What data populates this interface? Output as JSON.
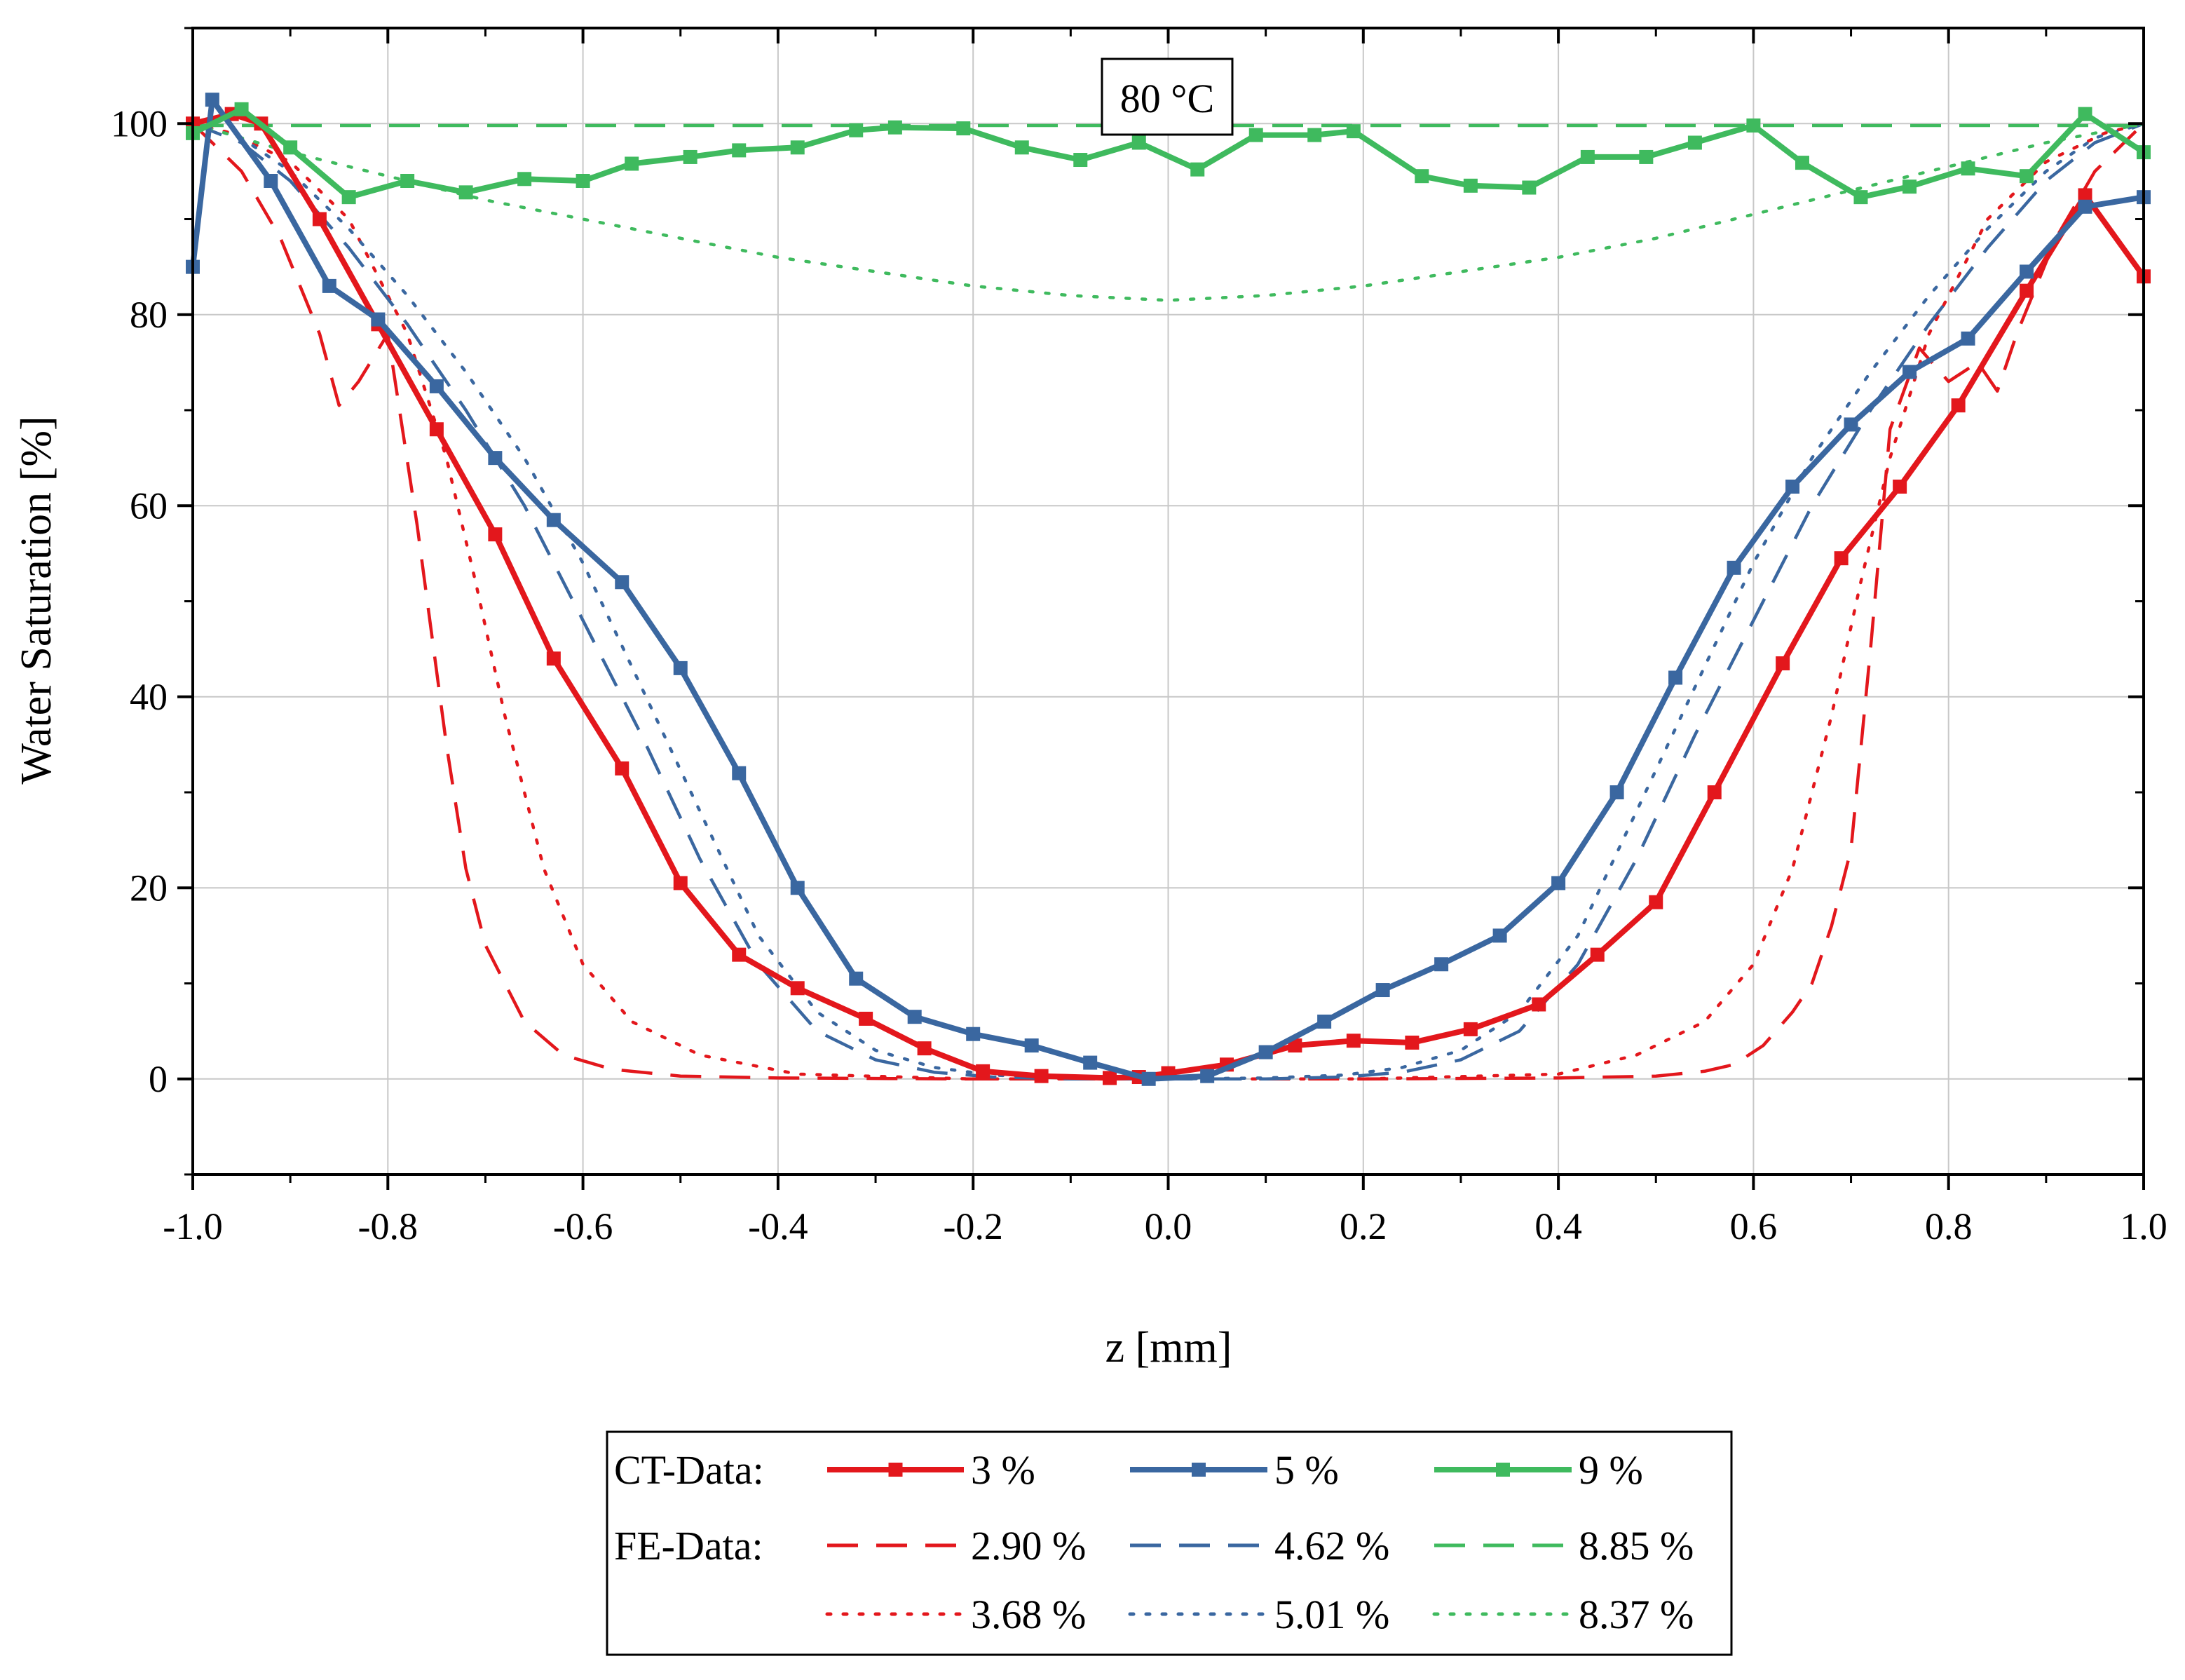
{
  "chart_data": {
    "type": "line",
    "annotation": "80 °C",
    "xlabel": "z [mm]",
    "ylabel": "Water Saturation [%]",
    "xlim": [
      -1.0,
      1.0
    ],
    "ylim": [
      -10,
      110
    ],
    "x_ticks": [
      -1.0,
      -0.8,
      -0.6,
      -0.4,
      -0.2,
      0.0,
      0.2,
      0.4,
      0.6,
      0.8,
      1.0
    ],
    "x_tick_labels": [
      "-1.0",
      "-0.8",
      "-0.6",
      "-0.4",
      "-0.2",
      "0.0",
      "0.2",
      "0.4",
      "0.6",
      "0.8",
      "1.0"
    ],
    "y_ticks": [
      0,
      20,
      40,
      60,
      80,
      100
    ],
    "y_tick_labels": [
      "0",
      "20",
      "40",
      "60",
      "80",
      "100"
    ],
    "grid": true,
    "colors": {
      "red": "#e3171c",
      "blue": "#3a67a0",
      "green": "#3fba5e"
    },
    "legend": {
      "ct_label": "CT-Data:",
      "fe_label": "FE-Data:",
      "entries": {
        "ct_3": "3 %",
        "ct_5": "5 %",
        "ct_9": "9 %",
        "fe_290": "2.90 %",
        "fe_462": "4.62 %",
        "fe_885": "8.85 %",
        "fe_368": "3.68 %",
        "fe_501": "5.01 %",
        "fe_837": "8.37 %"
      }
    },
    "series": [
      {
        "name": "CT 3 %",
        "group": "CT-Data",
        "color": "red",
        "style": "solid",
        "markers": true,
        "x": [
          -1.0,
          -0.96,
          -0.93,
          -0.87,
          -0.81,
          -0.75,
          -0.69,
          -0.63,
          -0.56,
          -0.5,
          -0.44,
          -0.38,
          -0.31,
          -0.25,
          -0.19,
          -0.13,
          -0.06,
          -0.03,
          0.0,
          0.06,
          0.13,
          0.19,
          0.25,
          0.31,
          0.38,
          0.44,
          0.5,
          0.56,
          0.63,
          0.69,
          0.75,
          0.81,
          0.88,
          0.94,
          1.0
        ],
        "y": [
          100,
          101,
          100,
          90,
          79,
          68,
          57,
          44,
          32.5,
          20.5,
          13,
          9.5,
          6.3,
          3.2,
          0.8,
          0.3,
          0.1,
          0.2,
          0.6,
          1.5,
          3.5,
          4,
          3.8,
          5.2,
          7.8,
          13,
          18.5,
          30,
          43.5,
          54.5,
          62,
          70.5,
          82.5,
          92.5,
          84
        ]
      },
      {
        "name": "CT 5 %",
        "group": "CT-Data",
        "color": "blue",
        "style": "solid",
        "markers": true,
        "x": [
          -1.0,
          -0.98,
          -0.92,
          -0.86,
          -0.81,
          -0.75,
          -0.69,
          -0.63,
          -0.56,
          -0.5,
          -0.44,
          -0.38,
          -0.32,
          -0.26,
          -0.2,
          -0.14,
          -0.08,
          -0.02,
          0.04,
          0.1,
          0.16,
          0.22,
          0.28,
          0.34,
          0.4,
          0.46,
          0.52,
          0.58,
          0.64,
          0.7,
          0.76,
          0.82,
          0.88,
          0.94,
          1.0
        ],
        "y": [
          85,
          102.5,
          94,
          83,
          79.5,
          72.5,
          65,
          58.5,
          52,
          43,
          32,
          20,
          10.5,
          6.5,
          4.7,
          3.5,
          1.7,
          0,
          0.3,
          2.8,
          6,
          9.3,
          12,
          15,
          20.5,
          30,
          42,
          53.5,
          62,
          68.5,
          74,
          77.5,
          84.5,
          91.3,
          92.3
        ]
      },
      {
        "name": "CT 9 %",
        "group": "CT-Data",
        "color": "green",
        "style": "solid",
        "markers": true,
        "x": [
          -1.0,
          -0.95,
          -0.9,
          -0.84,
          -0.78,
          -0.72,
          -0.66,
          -0.6,
          -0.55,
          -0.49,
          -0.44,
          -0.38,
          -0.32,
          -0.28,
          -0.21,
          -0.15,
          -0.09,
          -0.03,
          0.03,
          0.09,
          0.15,
          0.19,
          0.26,
          0.31,
          0.37,
          0.43,
          0.49,
          0.54,
          0.6,
          0.65,
          0.71,
          0.76,
          0.82,
          0.88,
          0.94,
          1.0
        ],
        "y": [
          99,
          101.5,
          97.5,
          92.3,
          94,
          92.8,
          94.2,
          94,
          95.8,
          96.5,
          97.2,
          97.5,
          99.3,
          99.6,
          99.5,
          97.5,
          96.2,
          98,
          95.2,
          98.8,
          98.8,
          99.2,
          94.5,
          93.5,
          93.3,
          96.5,
          96.5,
          98,
          99.8,
          95.9,
          92.3,
          93.4,
          95.3,
          94.5,
          101,
          97
        ]
      },
      {
        "name": "FE 2.90 %",
        "group": "FE-Data",
        "color": "red",
        "style": "dashed",
        "markers": false,
        "x": [
          -1.0,
          -0.95,
          -0.91,
          -0.87,
          -0.85,
          -0.83,
          -0.8,
          -0.77,
          -0.74,
          -0.72,
          -0.7,
          -0.66,
          -0.62,
          -0.57,
          -0.5,
          -0.4,
          -0.2,
          0.0,
          0.2,
          0.4,
          0.5,
          0.55,
          0.58,
          0.61,
          0.64,
          0.66,
          0.68,
          0.7,
          0.72,
          0.74,
          0.77,
          0.8,
          0.83,
          0.85,
          0.87,
          0.91,
          0.95,
          1.0
        ],
        "y": [
          100,
          95,
          88,
          78,
          70.5,
          73,
          78,
          58,
          35,
          22,
          14,
          6,
          2.5,
          1,
          0.3,
          0.1,
          0,
          0,
          0,
          0.1,
          0.3,
          0.8,
          1.5,
          3.5,
          7,
          10,
          16,
          24,
          45,
          68,
          76.5,
          73,
          75,
          72,
          78,
          88,
          95,
          100
        ]
      },
      {
        "name": "FE 3.68 %",
        "group": "FE-Data",
        "color": "red",
        "style": "dotted",
        "markers": false,
        "x": [
          -1.0,
          -0.96,
          -0.9,
          -0.84,
          -0.78,
          -0.74,
          -0.71,
          -0.68,
          -0.64,
          -0.6,
          -0.55,
          -0.48,
          -0.38,
          -0.2,
          0.0,
          0.2,
          0.4,
          0.48,
          0.55,
          0.6,
          0.64,
          0.68,
          0.71,
          0.74,
          0.78,
          0.84,
          0.9,
          0.96,
          1.0
        ],
        "y": [
          100,
          99,
          96,
          90,
          78,
          65,
          52,
          38,
          22,
          12,
          6,
          2.5,
          0.5,
          0,
          0,
          0,
          0.5,
          2.5,
          6,
          12,
          22,
          38,
          52,
          65,
          78,
          90,
          96,
          99,
          100
        ]
      },
      {
        "name": "FE 4.62 %",
        "group": "FE-Data",
        "color": "blue",
        "style": "dashed",
        "markers": false,
        "x": [
          -1.0,
          -0.95,
          -0.9,
          -0.84,
          -0.78,
          -0.72,
          -0.66,
          -0.6,
          -0.54,
          -0.48,
          -0.42,
          -0.36,
          -0.3,
          -0.24,
          -0.18,
          -0.1,
          0.0,
          0.1,
          0.18,
          0.24,
          0.3,
          0.36,
          0.42,
          0.48,
          0.54,
          0.6,
          0.66,
          0.72,
          0.78,
          0.84,
          0.9,
          0.95,
          1.0
        ],
        "y": [
          100,
          98,
          94,
          87,
          79,
          70,
          60,
          48,
          36,
          23,
          12,
          5,
          2,
          0.7,
          0.2,
          0,
          0,
          0,
          0.2,
          0.7,
          2,
          5,
          12,
          23,
          36,
          48,
          60,
          70,
          79,
          87,
          94,
          98,
          100
        ]
      },
      {
        "name": "FE 5.01 %",
        "group": "FE-Data",
        "color": "blue",
        "style": "dotted",
        "markers": false,
        "x": [
          -1.0,
          -0.95,
          -0.9,
          -0.84,
          -0.78,
          -0.72,
          -0.66,
          -0.6,
          -0.54,
          -0.48,
          -0.42,
          -0.36,
          -0.3,
          -0.24,
          -0.18,
          -0.1,
          0.0,
          0.1,
          0.18,
          0.24,
          0.3,
          0.36,
          0.42,
          0.48,
          0.54,
          0.6,
          0.66,
          0.72,
          0.78,
          0.84,
          0.9,
          0.95,
          1.0
        ],
        "y": [
          100,
          98.5,
          95,
          89,
          82,
          74,
          65,
          54,
          41,
          28,
          15,
          7,
          3,
          1.2,
          0.4,
          0.1,
          0,
          0.1,
          0.4,
          1.2,
          3,
          7,
          15,
          28,
          41,
          54,
          65,
          74,
          82,
          89,
          95,
          98.5,
          100
        ]
      },
      {
        "name": "FE 8.85 %",
        "group": "FE-Data",
        "color": "green",
        "style": "dashed",
        "markers": false,
        "x": [
          -1.0,
          -0.5,
          0.0,
          0.5,
          1.0
        ],
        "y": [
          99.8,
          99.8,
          99.8,
          99.8,
          99.8
        ]
      },
      {
        "name": "FE 8.37 %",
        "group": "FE-Data",
        "color": "green",
        "style": "dotted",
        "markers": false,
        "x": [
          -1.0,
          -0.9,
          -0.8,
          -0.7,
          -0.6,
          -0.5,
          -0.4,
          -0.3,
          -0.2,
          -0.1,
          0.0,
          0.1,
          0.2,
          0.3,
          0.4,
          0.5,
          0.6,
          0.7,
          0.8,
          0.9,
          1.0
        ],
        "y": [
          100,
          97,
          94.5,
          92,
          90,
          88,
          86,
          84.5,
          83,
          82,
          81.5,
          82,
          83,
          84.5,
          86,
          88,
          90.5,
          93,
          95.5,
          98,
          100
        ]
      }
    ]
  }
}
